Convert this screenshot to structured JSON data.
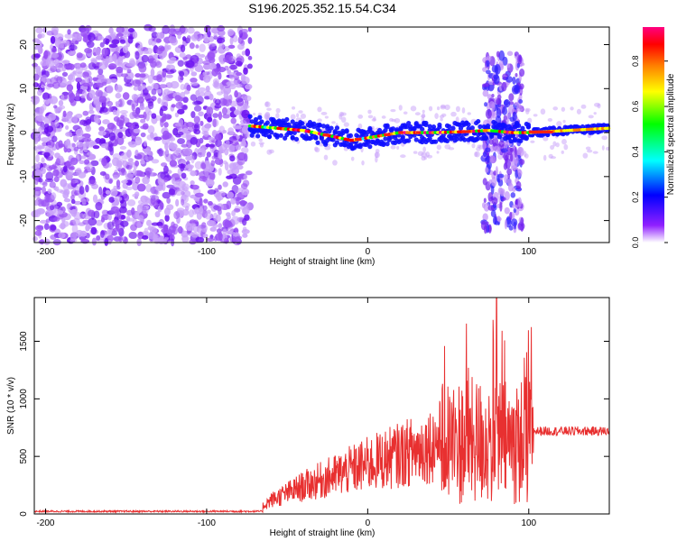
{
  "title": "S196.2025.352.15.54.C34",
  "chart_data": [
    {
      "type": "heatmap",
      "name": "spectrogram",
      "xlabel": "Height of straight line (km)",
      "ylabel": "Frequency (Hz)",
      "xlim": [
        -207,
        150
      ],
      "ylim": [
        -25,
        24
      ],
      "xticks": [
        -200,
        -100,
        0,
        100
      ],
      "xtick_labels": [
        "-200",
        "-100",
        "0",
        "100"
      ],
      "yticks": [
        -20,
        -10,
        0,
        10,
        20
      ],
      "ytick_labels": [
        "-20",
        "-10",
        "0",
        "10",
        "20"
      ],
      "colorbar": {
        "label": "Normalized spectral amplitude",
        "range": [
          0,
          0.95
        ],
        "ticks": [
          0.0,
          0.2,
          0.4,
          0.6,
          0.8
        ],
        "tick_labels": [
          "0.0",
          "0.2",
          "0.4",
          "0.6",
          "0.8"
        ],
        "colors": [
          "#ffffff",
          "#9020ff",
          "#0000ff",
          "#00ffff",
          "#00ff00",
          "#ffff00",
          "#ff8000",
          "#ff0000",
          "#ff0080"
        ]
      },
      "regions": [
        {
          "name": "noise",
          "x": [
            -207,
            -73
          ],
          "y": [
            -25,
            24
          ],
          "level": 0.12
        },
        {
          "name": "signal-band",
          "x": [
            -73,
            150
          ],
          "center_y": [
            [
              -73,
              1.5
            ],
            [
              -40,
              0.5
            ],
            [
              -20,
              -1
            ],
            [
              -10,
              -1.8
            ],
            [
              0,
              -1.2
            ],
            [
              20,
              0
            ],
            [
              40,
              0
            ],
            [
              60,
              0.2
            ],
            [
              75,
              0.5
            ],
            [
              90,
              0
            ],
            [
              100,
              0
            ],
            [
              150,
              1
            ]
          ],
          "level": 0.7
        }
      ]
    },
    {
      "type": "line",
      "name": "snr",
      "xlabel": "Height of straight line (km)",
      "ylabel": "SNR (10 * v/v)",
      "xlim": [
        -207,
        150
      ],
      "ylim": [
        0,
        1880
      ],
      "xticks": [
        -200,
        -100,
        0,
        100
      ],
      "xtick_labels": [
        "-200",
        "-100",
        "0",
        "100"
      ],
      "yticks": [
        0,
        500,
        1000,
        1500
      ],
      "ytick_labels": [
        "0",
        "500",
        "1000",
        "1500"
      ],
      "line_color": "#e83030",
      "series": [
        {
          "name": "SNR",
          "x": [
            -207,
            -150,
            -100,
            -80,
            -70,
            -60,
            -40,
            -20,
            0,
            20,
            35,
            45,
            50,
            55,
            60,
            65,
            70,
            75,
            80,
            85,
            90,
            95,
            100,
            103,
            110,
            120,
            130,
            140,
            150
          ],
          "values": [
            20,
            18,
            15,
            15,
            20,
            150,
            300,
            420,
            540,
            640,
            720,
            800,
            300,
            950,
            400,
            800,
            500,
            1100,
            1880,
            300,
            1200,
            350,
            1450,
            700,
            690,
            700,
            710,
            705,
            720
          ]
        }
      ]
    }
  ]
}
